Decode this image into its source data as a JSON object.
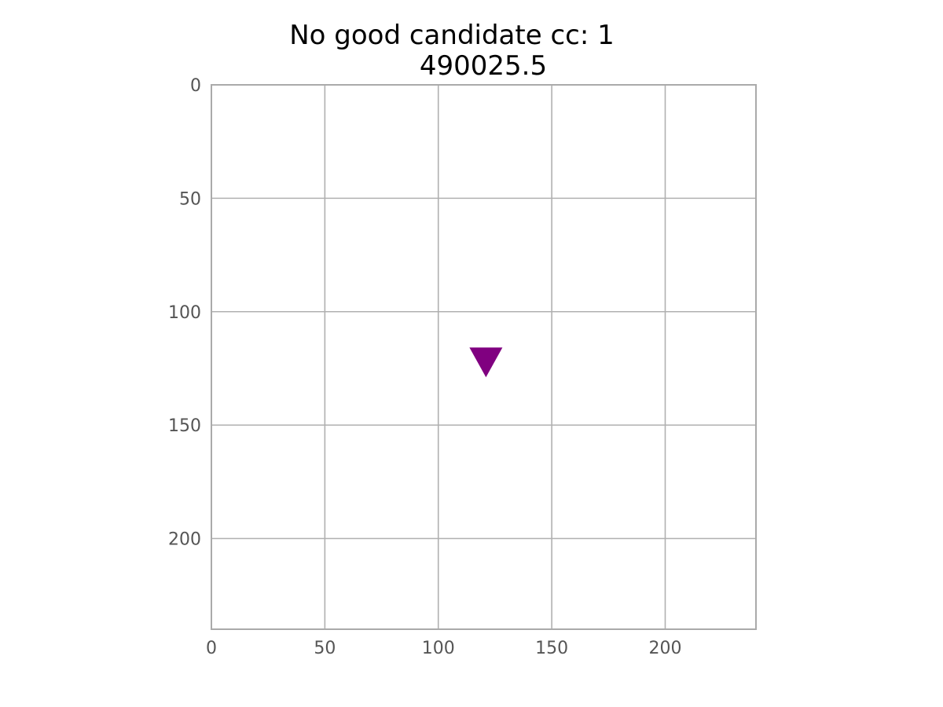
{
  "chart_data": {
    "type": "scatter",
    "title_line1": "No good candidate cc: 1",
    "title_line2": "490025.5",
    "xlim": [
      0,
      240
    ],
    "ylim": [
      0,
      240
    ],
    "y_inverted": true,
    "grid": true,
    "x_ticks": [
      "0",
      "50",
      "100",
      "150",
      "200"
    ],
    "y_ticks": [
      "0",
      "50",
      "100",
      "150",
      "200"
    ],
    "points": [
      {
        "x": 121,
        "y": 122,
        "marker": "triangle-down",
        "color": "#800080"
      }
    ],
    "colors": {
      "grid": "#b0b0b0",
      "spine": "#aaaaaa",
      "tick_label": "#555555"
    }
  }
}
